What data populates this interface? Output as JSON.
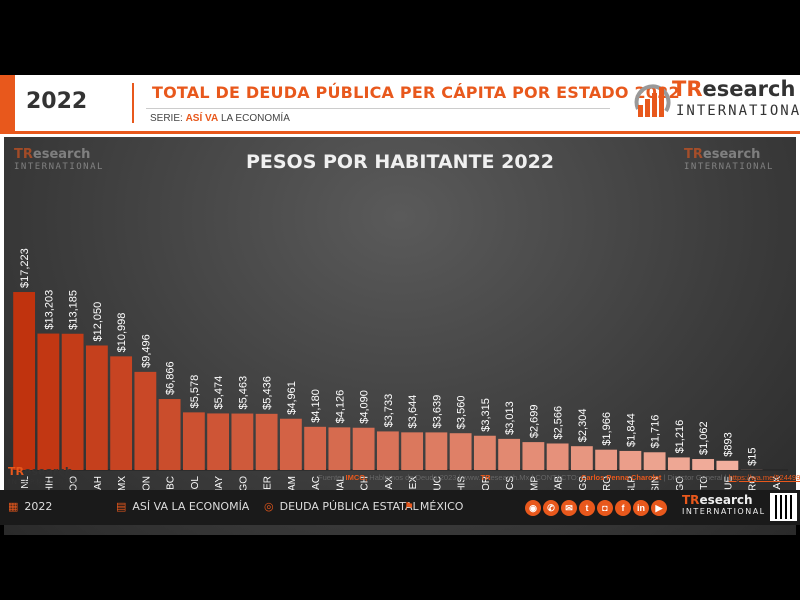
{
  "header": {
    "year": "2022",
    "title": "TOTAL DE DEUDA PÚBLICA PER CÁPITA POR ESTADO 2022",
    "serie_label": "SERIE:",
    "serie_bold": "ASÍ VA",
    "serie_rest": "LA ECONOMÍA",
    "logo_tr": "TR",
    "logo_research": "esearch",
    "logo_intl": "INTERNATIONAL"
  },
  "watermark": {
    "tr": "TR",
    "research": "esearch",
    "intl": "INTERNATIONAL"
  },
  "chart_data": {
    "type": "bar",
    "title": "PESOS POR HABITANTE 2022",
    "categories": [
      "NL",
      "CHIH",
      "QROO",
      "COAH",
      "CDMX",
      "SON",
      "BC",
      "COL",
      "NAY",
      "DGO",
      "VER",
      "TAM",
      "ZAC",
      "JAL",
      "MICH",
      "OAX",
      "EDOMEX",
      "YUC",
      "CHIS",
      "MOR",
      "BCS",
      "CAMP",
      "TAB",
      "AGS",
      "GRO",
      "SLP",
      "SIN",
      "HGO",
      "GTO",
      "PUE",
      "QRO",
      "TLAX"
    ],
    "values": [
      17223,
      13203,
      13185,
      12050,
      10998,
      9496,
      6866,
      5578,
      5474,
      5463,
      5436,
      4961,
      4180,
      4126,
      4090,
      3733,
      3644,
      3639,
      3560,
      3315,
      3013,
      2699,
      2566,
      2304,
      1966,
      1844,
      1716,
      1216,
      1062,
      893,
      15,
      0
    ],
    "labels": [
      "$17,223",
      "$13,203",
      "$13,185",
      "$12,050",
      "$10,998",
      "$9,496",
      "$6,866",
      "$5,578",
      "$5,474",
      "$5,463",
      "$5,436",
      "$4,961",
      "$4,180",
      "$4,126",
      "$4,090",
      "$3,733",
      "$3,644",
      "$3,639",
      "$3,560",
      "$3,315",
      "$3,013",
      "$2,699",
      "$2,566",
      "$2,304",
      "$1,966",
      "$1,844",
      "$1,716",
      "$1,216",
      "$1,062",
      "$893",
      "$15",
      ""
    ],
    "ylim": [
      0,
      18000
    ],
    "color_dark": "#c0330e",
    "color_light": "#f5b8a8"
  },
  "footer": {
    "source_prefix": "Fuente:",
    "source_org": "IMCO,",
    "source_rest": "Hablemos de Deuda 2023  |  www.",
    "source_site_b": "TR",
    "source_site": "esearch.Mx | CONTACTO:",
    "contact_name": "Carlos Penna Charolet",
    "contact_role": "| Director General |",
    "link": "https://wa.me/524499193645"
  },
  "bottombar": {
    "year": "2022",
    "series": "ASÍ VA LA ECONOMÍA",
    "topic": "DEUDA PÚBLICA ESTATAL",
    "country": "MÉXICO"
  }
}
